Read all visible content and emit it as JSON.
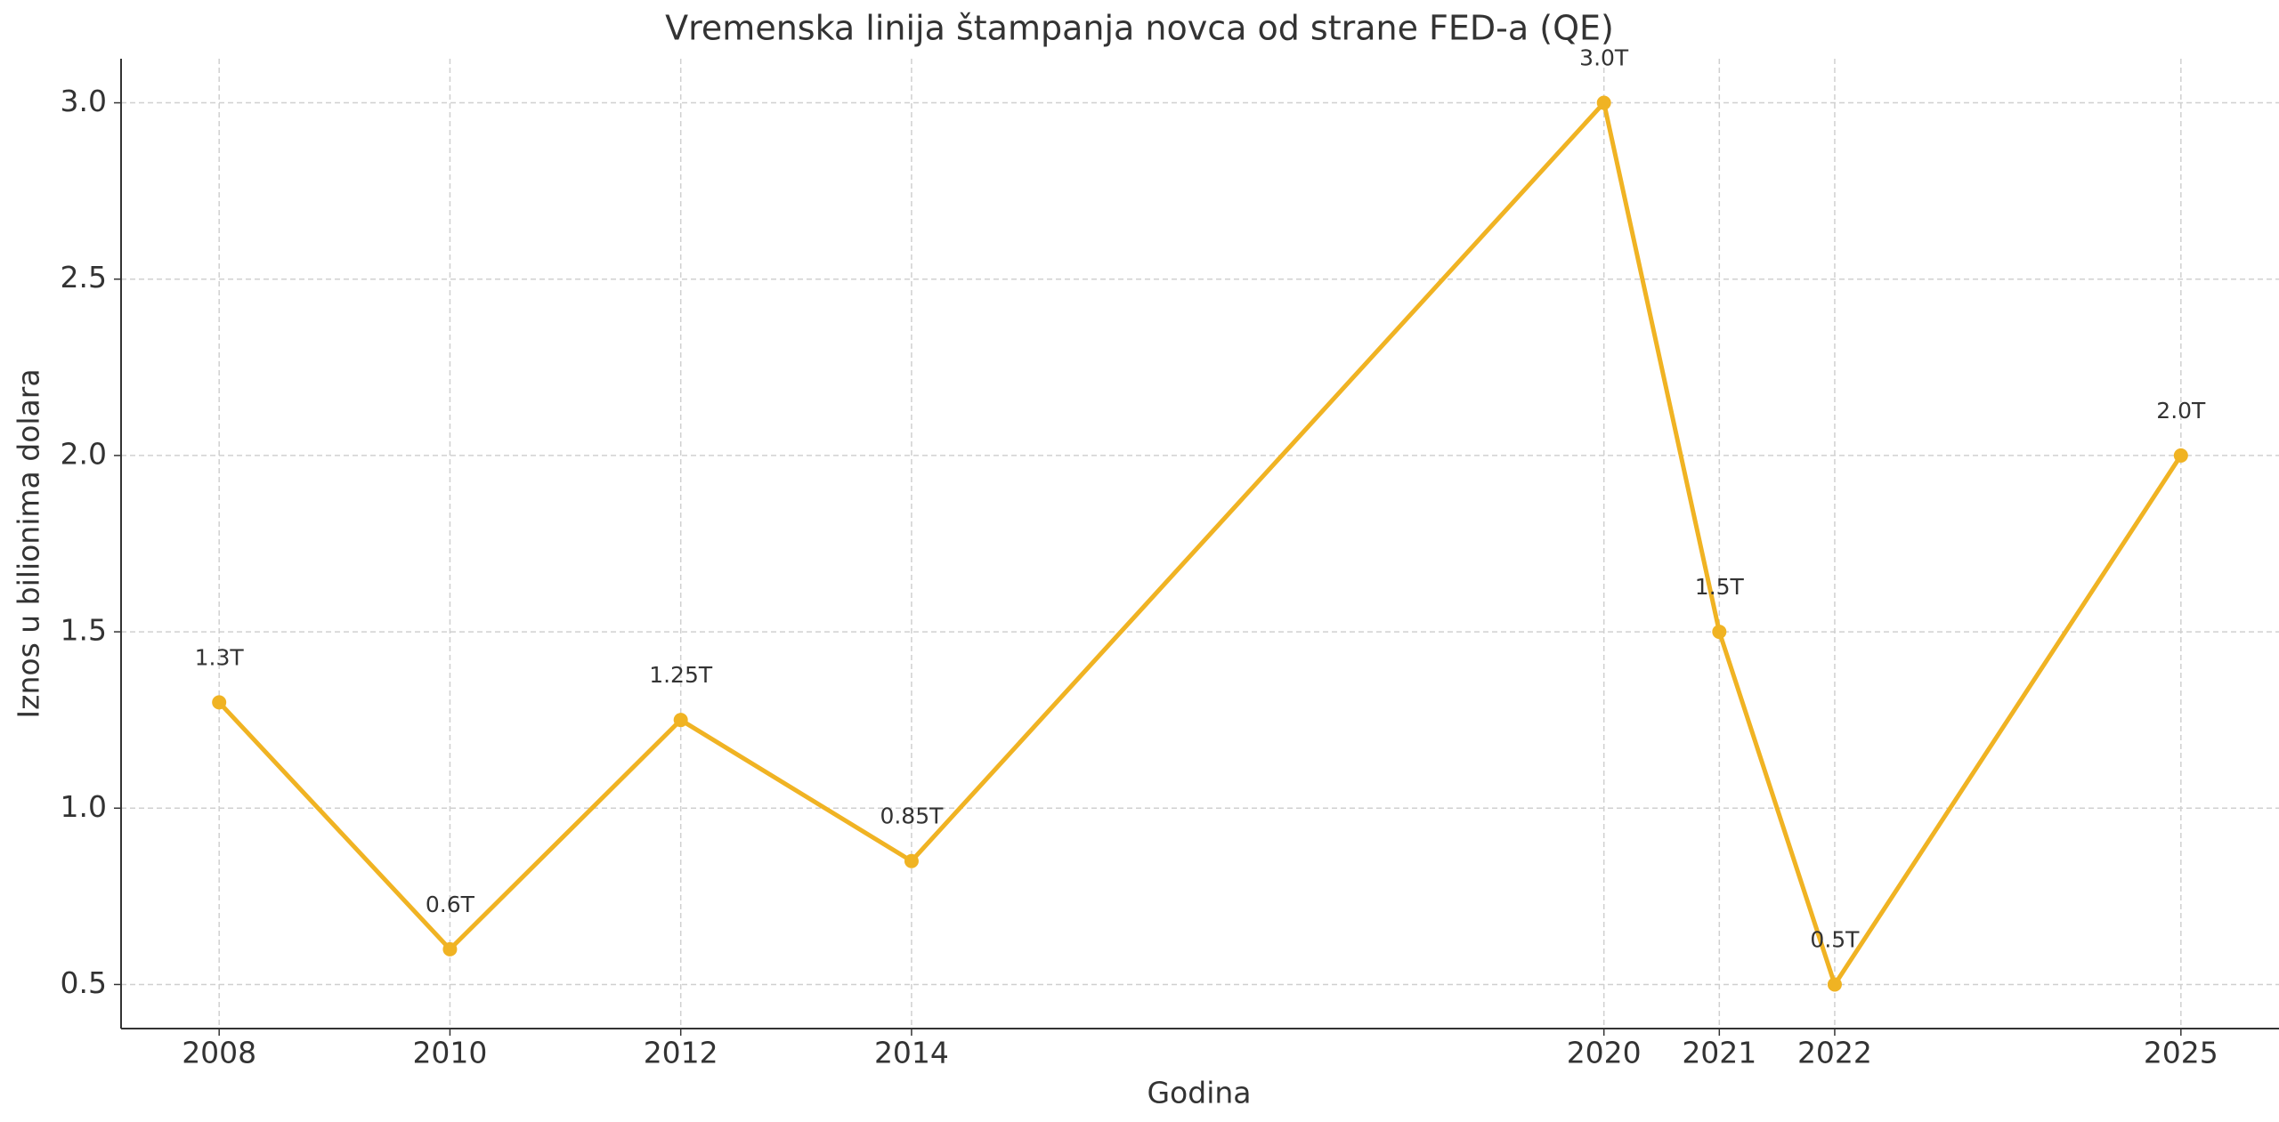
{
  "chart_data": {
    "type": "line",
    "title": "Vremenska linija štampanja novca od strane FED-a (QE)",
    "x_label": "Godina",
    "y_label": "Iznos u bilionima dolara",
    "x": [
      2008,
      2010,
      2012,
      2014,
      2020,
      2021,
      2022,
      2025
    ],
    "values": [
      1.3,
      0.6,
      1.25,
      0.85,
      3.0,
      1.5,
      0.5,
      2.0
    ],
    "value_labels": [
      "1.3T",
      "0.6T",
      "1.25T",
      "0.85T",
      "3.0T",
      "1.5T",
      "0.5T",
      "2.0T"
    ],
    "color": "#f0b323",
    "xlim": [
      2007.15,
      2025.85
    ],
    "xticks": [
      2008,
      2010,
      2012,
      2014,
      2020,
      2021,
      2022,
      2025
    ],
    "ylim": [
      0.375,
      3.125
    ],
    "yticks": [
      0.5,
      {
        "value": 1,
        "label": "1.0"
      },
      1.5,
      {
        "value": 2,
        "label": "2.0"
      },
      2.5,
      {
        "value": 3,
        "label": "3.0"
      }
    ],
    "grid": true
  }
}
